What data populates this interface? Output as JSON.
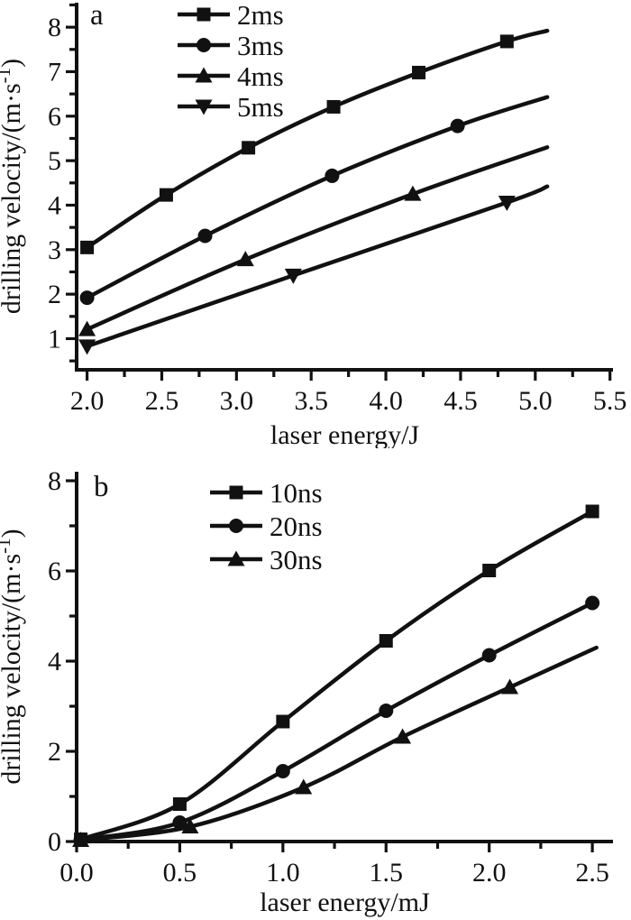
{
  "figure": {
    "background": "#ffffff",
    "ink_color": "#111111",
    "panel_labels": [
      "a",
      "b"
    ]
  },
  "chart_data": [
    {
      "type": "line",
      "panel_label": "a",
      "title": "",
      "xlabel": "laser energy/J",
      "ylabel": "drilling velocity/(m·s⁻¹)",
      "xlim": [
        1.93,
        5.52
      ],
      "ylim": [
        0.3,
        8.55
      ],
      "grid": false,
      "legend_position": "top-left-inside",
      "xticks": [
        2.0,
        2.5,
        3.0,
        3.5,
        4.0,
        4.5,
        5.0,
        5.5
      ],
      "xtick_labels": [
        "2.0",
        "2.5",
        "3.0",
        "3.5",
        "4.0",
        "4.5",
        "5.0",
        "5.5"
      ],
      "xminor_step": 0.25,
      "yticks": [
        1,
        2,
        3,
        4,
        5,
        6,
        7,
        8
      ],
      "ytick_labels": [
        "1",
        "2",
        "3",
        "4",
        "5",
        "6",
        "7",
        "8"
      ],
      "yminor_step": 0.5,
      "series": [
        {
          "name": "2ms",
          "marker": "square",
          "x": [
            2.0,
            2.53,
            3.08,
            3.65,
            4.22,
            4.81
          ],
          "y": [
            3.05,
            4.23,
            5.29,
            6.21,
            6.98,
            7.68
          ],
          "line_end": {
            "x": 5.08,
            "y": 7.92
          }
        },
        {
          "name": "3ms",
          "marker": "circle",
          "x": [
            2.0,
            2.79,
            3.64,
            4.48
          ],
          "y": [
            1.92,
            3.31,
            4.66,
            5.78
          ],
          "line_end": {
            "x": 5.08,
            "y": 6.43
          }
        },
        {
          "name": "4ms",
          "marker": "triangle-up",
          "x": [
            2.0,
            3.06,
            4.18
          ],
          "y": [
            1.21,
            2.78,
            4.25
          ],
          "line_end": {
            "x": 5.08,
            "y": 5.3
          }
        },
        {
          "name": "5ms",
          "marker": "triangle-down",
          "x": [
            2.0,
            3.38,
            4.81
          ],
          "y": [
            0.83,
            2.42,
            4.06
          ],
          "line_end": {
            "x": 5.08,
            "y": 4.42
          }
        }
      ]
    },
    {
      "type": "line",
      "panel_label": "b",
      "title": "",
      "xlabel": "laser energy/mJ",
      "ylabel": "drilling velocity/(m·s⁻¹)",
      "xlim": [
        0,
        2.6
      ],
      "ylim": [
        0,
        8.2
      ],
      "grid": false,
      "legend_position": "top-left-inside",
      "xticks": [
        0.0,
        0.5,
        1.0,
        1.5,
        2.0,
        2.5
      ],
      "xtick_labels": [
        "0.0",
        "0.5",
        "1.0",
        "1.5",
        "2.0",
        "2.5"
      ],
      "xminor_step": 0.25,
      "yticks": [
        0,
        2,
        4,
        6,
        8
      ],
      "ytick_labels": [
        "0",
        "2",
        "4",
        "6",
        "8"
      ],
      "yminor_step": 1,
      "series": [
        {
          "name": "10ns",
          "marker": "square",
          "x": [
            0.02,
            0.5,
            1.0,
            1.5,
            2.0,
            2.5
          ],
          "y": [
            0.05,
            0.83,
            2.66,
            4.45,
            6.01,
            7.32
          ]
        },
        {
          "name": "20ns",
          "marker": "circle",
          "x": [
            0.02,
            0.5,
            1.0,
            1.5,
            2.0,
            2.5
          ],
          "y": [
            0.04,
            0.42,
            1.56,
            2.9,
            4.13,
            5.29
          ]
        },
        {
          "name": "30ns",
          "marker": "triangle-up",
          "x": [
            0.02,
            0.55,
            1.1,
            1.58,
            2.1
          ],
          "y": [
            0.03,
            0.33,
            1.2,
            2.32,
            3.42
          ],
          "line_end": {
            "x": 2.52,
            "y": 4.3
          }
        }
      ]
    }
  ]
}
